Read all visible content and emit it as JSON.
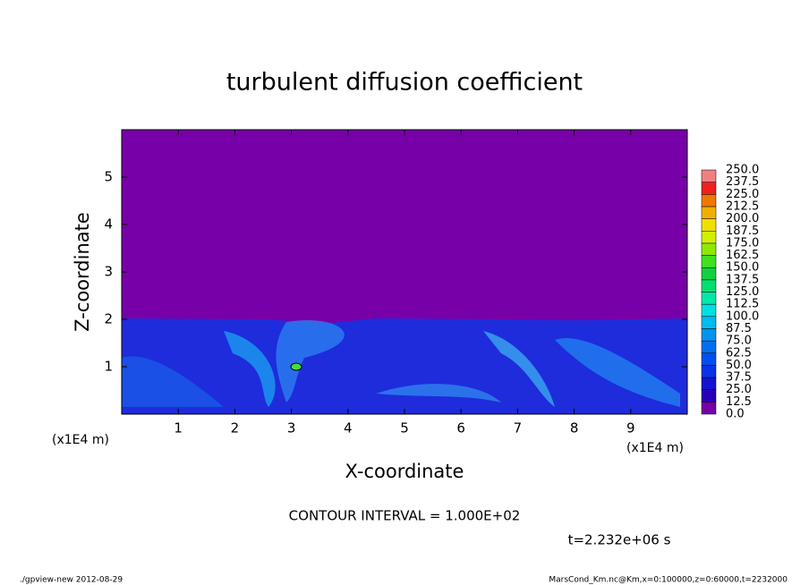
{
  "chart_data": {
    "type": "contour",
    "title": "turbulent diffusion coefficient",
    "xlabel": "X-coordinate",
    "ylabel": "Z-coordinate",
    "x_unit": "(x1E4 m)",
    "xlim": [
      0,
      10
    ],
    "xticks": [
      1,
      2,
      3,
      4,
      5,
      6,
      7,
      8,
      9
    ],
    "ylim": [
      0,
      6
    ],
    "yticks": [
      1,
      2,
      3,
      4,
      5
    ],
    "colorbar_ticks": [
      {
        "value": 0,
        "label": "0.0"
      },
      12.5,
      {
        "value": 25,
        "label": "25.0"
      },
      37.5,
      {
        "value": 50,
        "label": "50.0"
      },
      62.5,
      {
        "value": 75,
        "label": "75.0"
      },
      87.5,
      {
        "value": 100,
        "label": "100.0"
      },
      112.5,
      {
        "value": 125,
        "label": "125.0"
      },
      137.5,
      {
        "value": 150,
        "label": "150.0"
      },
      162.5,
      {
        "value": 175,
        "label": "175.0"
      },
      187.5,
      {
        "value": 200,
        "label": "200.0"
      },
      212.5,
      {
        "value": 225,
        "label": "225.0"
      },
      237.5,
      {
        "value": 250,
        "label": "250.0"
      }
    ],
    "colorbar_colors": [
      "#7800a8",
      "#2800b8",
      "#1414d0",
      "#0a32e6",
      "#0050f0",
      "#0070f0",
      "#0094f0",
      "#00bcf0",
      "#00e0e0",
      "#00e8a8",
      "#00e070",
      "#10d040",
      "#40e020",
      "#90e800",
      "#d0f000",
      "#f0e000",
      "#f0b000",
      "#f07800",
      "#f02020",
      "#f08080"
    ],
    "annotation": "CONTOUR INTERVAL = 1.000E+02",
    "time_label": "t=2.232e+06 s",
    "footer_left": "./gpview-new  2012-08-29",
    "footer_right": "MarsCond_Km.nc@Km,x=0:100000,z=0:60000,t=2232000"
  }
}
